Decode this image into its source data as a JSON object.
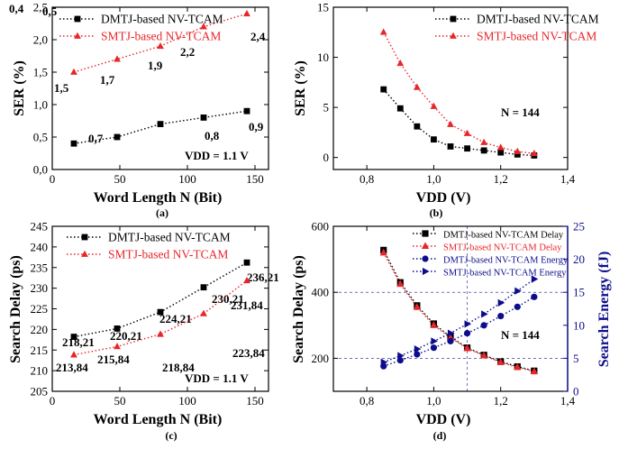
{
  "figure": {
    "colors": {
      "dmtj": "#000000",
      "smtj": "#e8262a",
      "energy": "#0d0d8c",
      "axis": "#000000"
    }
  },
  "chart_data": [
    {
      "id": "a",
      "type": "line",
      "caption": "(a)",
      "xlabel": "Word Length N (Bit)",
      "ylabel": "SER (%)",
      "xlim": [
        0,
        160
      ],
      "ylim": [
        0.0,
        2.5
      ],
      "xticks": [
        "0",
        "50",
        "100",
        "150"
      ],
      "yticks": [
        "0,0",
        "0,5",
        "1,0",
        "1,5",
        "2,0",
        "2,5"
      ],
      "legend_position": "top-left",
      "annotations": [
        "VDD = 1.1 V"
      ],
      "series": [
        {
          "name": "DMTJ-based NV-TCAM",
          "marker": "square",
          "color": "#000000",
          "x": [
            16,
            48,
            80,
            112,
            144
          ],
          "y": [
            0.4,
            0.5,
            0.7,
            0.8,
            0.9
          ],
          "labels": [
            "0,4",
            "0,5",
            "0,7",
            "0,8",
            "0,9"
          ]
        },
        {
          "name": "SMTJ-based NV-TCAM",
          "marker": "triangle",
          "color": "#e8262a",
          "x": [
            16,
            48,
            80,
            112,
            144
          ],
          "y": [
            1.5,
            1.7,
            1.9,
            2.2,
            2.4
          ],
          "labels": [
            "1,5",
            "1,7",
            "1,9",
            "2,2",
            "2,4"
          ]
        }
      ]
    },
    {
      "id": "b",
      "type": "line",
      "caption": "(b)",
      "xlabel": "VDD (V)",
      "ylabel": "SER (%)",
      "xlim": [
        0.7,
        1.4
      ],
      "ylim": [
        -1.2,
        15
      ],
      "xticks": [
        "0,8",
        "1,0",
        "1,2",
        "1,4"
      ],
      "yticks": [
        "0",
        "5",
        "10",
        "15"
      ],
      "legend_position": "top-right",
      "annotations": [
        "N = 144"
      ],
      "series": [
        {
          "name": "DMTJ-based NV-TCAM",
          "marker": "square",
          "color": "#000000",
          "x": [
            0.85,
            0.9,
            0.95,
            1.0,
            1.05,
            1.1,
            1.15,
            1.2,
            1.25,
            1.3
          ],
          "y": [
            6.8,
            4.9,
            3.1,
            1.8,
            1.1,
            0.9,
            0.7,
            0.5,
            0.3,
            0.2
          ]
        },
        {
          "name": "SMTJ-based NV-TCAM",
          "marker": "triangle",
          "color": "#e8262a",
          "x": [
            0.85,
            0.9,
            0.95,
            1.0,
            1.05,
            1.1,
            1.15,
            1.2,
            1.25,
            1.3
          ],
          "y": [
            12.5,
            9.4,
            7.0,
            5.1,
            3.3,
            2.4,
            1.5,
            1.0,
            0.6,
            0.4
          ]
        }
      ]
    },
    {
      "id": "c",
      "type": "line",
      "caption": "(c)",
      "xlabel": "Word Length N (Bit)",
      "ylabel": "Search Delay (ps)",
      "xlim": [
        0,
        160
      ],
      "ylim": [
        205,
        245
      ],
      "xticks": [
        "0",
        "50",
        "100",
        "150"
      ],
      "yticks": [
        "205",
        "210",
        "215",
        "220",
        "225",
        "230",
        "235",
        "240",
        "245"
      ],
      "legend_position": "top-left",
      "annotations": [
        "VDD = 1.1 V"
      ],
      "series": [
        {
          "name": "DMTJ-based NV-TCAM",
          "marker": "square",
          "color": "#000000",
          "x": [
            16,
            48,
            80,
            112,
            144
          ],
          "y": [
            218.21,
            220.21,
            224.21,
            230.21,
            236.21
          ],
          "labels": [
            "218,21",
            "220,21",
            "224,21",
            "230,21",
            "236,21"
          ]
        },
        {
          "name": "SMTJ-based NV-TCAM",
          "marker": "triangle",
          "color": "#e8262a",
          "x": [
            16,
            48,
            80,
            112,
            144
          ],
          "y": [
            213.84,
            215.84,
            218.84,
            223.84,
            231.84
          ],
          "labels": [
            "213,84",
            "215,84",
            "218,84",
            "223,84",
            "231,84"
          ]
        }
      ]
    },
    {
      "id": "d",
      "type": "line",
      "caption": "(d)",
      "xlabel": "VDD (V)",
      "ylabel": "Search Delay (ps)",
      "ylabel_right": "Search Energy (fJ)",
      "xlim": [
        0.7,
        1.4
      ],
      "ylim": [
        100,
        600
      ],
      "ylim_right": [
        0,
        25
      ],
      "xticks": [
        "0,8",
        "1,0",
        "1,2",
        "1,4"
      ],
      "yticks": [
        "200",
        "400",
        "600"
      ],
      "yticks_right": [
        "0",
        "5",
        "10",
        "15",
        "20",
        "25"
      ],
      "legend_position": "top-right",
      "annotations": [
        "N = 144"
      ],
      "series": [
        {
          "name": "DMTJ-based NV-TCAM Delay",
          "marker": "square",
          "color": "#000000",
          "axis": "left",
          "x": [
            0.85,
            0.9,
            0.95,
            1.0,
            1.05,
            1.1,
            1.15,
            1.2,
            1.25,
            1.3
          ],
          "y": [
            528,
            430,
            360,
            305,
            265,
            232,
            210,
            190,
            175,
            162
          ]
        },
        {
          "name": "SMTJ-based NV-TCAM Delay",
          "marker": "triangle",
          "color": "#e8262a",
          "axis": "left",
          "x": [
            0.85,
            0.9,
            0.95,
            1.0,
            1.05,
            1.1,
            1.15,
            1.2,
            1.25,
            1.3
          ],
          "y": [
            520,
            425,
            355,
            300,
            262,
            230,
            208,
            188,
            173,
            160
          ]
        },
        {
          "name": "DMTJ-based NV-TCAM Energy",
          "marker": "circle",
          "color": "#0d0d8c",
          "axis": "right",
          "x": [
            0.85,
            0.9,
            0.95,
            1.0,
            1.05,
            1.1,
            1.15,
            1.2,
            1.25,
            1.3
          ],
          "y": [
            3.8,
            4.7,
            5.6,
            6.6,
            7.6,
            8.8,
            10.0,
            11.4,
            12.8,
            14.3
          ]
        },
        {
          "name": "SMTJ-based NV-TCAM Energy",
          "marker": "triangle-right",
          "color": "#0d0d8c",
          "axis": "right",
          "x": [
            0.85,
            0.9,
            0.95,
            1.0,
            1.05,
            1.1,
            1.15,
            1.2,
            1.25,
            1.3
          ],
          "y": [
            4.4,
            5.4,
            6.4,
            7.6,
            8.8,
            10.2,
            11.7,
            13.4,
            15.2,
            17.0
          ]
        }
      ]
    }
  ]
}
